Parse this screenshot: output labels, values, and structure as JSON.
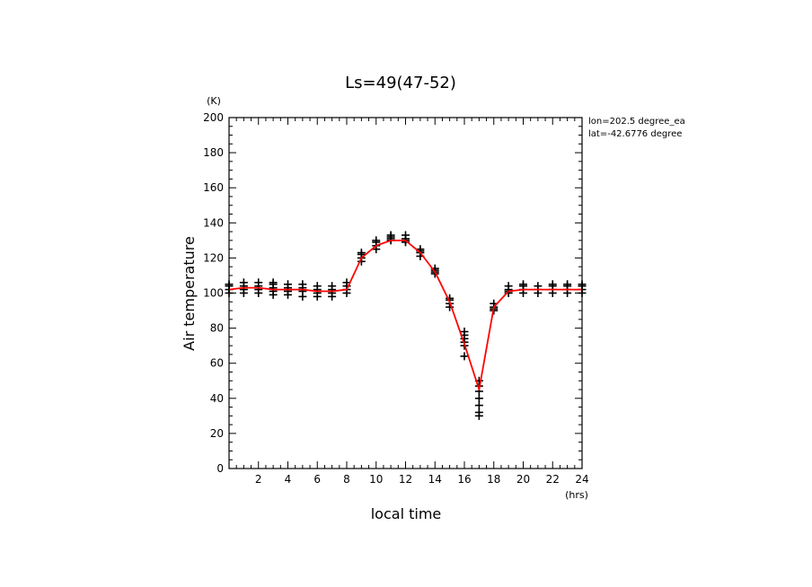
{
  "chart_data": {
    "type": "line",
    "title": "Ls=49(47-52)",
    "xlabel": "local time",
    "ylabel": "Air temperature",
    "x_unit": "(hrs)",
    "y_unit": "(K)",
    "xlim": [
      0,
      24
    ],
    "ylim": [
      0,
      200
    ],
    "x_ticks": [
      2,
      4,
      6,
      8,
      10,
      12,
      14,
      16,
      18,
      20,
      22,
      24
    ],
    "y_ticks": [
      0,
      20,
      40,
      60,
      80,
      100,
      120,
      140,
      160,
      180,
      200
    ],
    "annotations": [
      "lon=202.5 degree_ea",
      "lat=-42.6776 degree"
    ],
    "colors": {
      "line": "#ff0000",
      "markers": "#000000"
    },
    "series": [
      {
        "type": "line",
        "x": [
          0,
          1,
          2,
          3,
          4,
          5,
          6,
          7,
          8,
          9,
          10,
          11,
          12,
          13,
          14,
          15,
          16,
          17,
          18,
          19,
          20,
          21,
          22,
          23,
          24
        ],
        "values": [
          102,
          103,
          103,
          102,
          102,
          102,
          101,
          101,
          102,
          120,
          127,
          130,
          130,
          123,
          112,
          95,
          71,
          45,
          92,
          101,
          102,
          102,
          102,
          102,
          102
        ]
      },
      {
        "type": "scatter",
        "marker": "+",
        "points": [
          [
            0,
            100
          ],
          [
            0,
            102
          ],
          [
            0,
            104
          ],
          [
            0,
            105
          ],
          [
            1,
            100
          ],
          [
            1,
            102
          ],
          [
            1,
            104
          ],
          [
            1,
            106
          ],
          [
            2,
            100
          ],
          [
            2,
            102
          ],
          [
            2,
            104
          ],
          [
            2,
            106
          ],
          [
            3,
            99
          ],
          [
            3,
            101
          ],
          [
            3,
            103
          ],
          [
            3,
            105
          ],
          [
            3,
            106
          ],
          [
            4,
            99
          ],
          [
            4,
            101
          ],
          [
            4,
            103
          ],
          [
            4,
            105
          ],
          [
            5,
            98
          ],
          [
            5,
            101
          ],
          [
            5,
            103
          ],
          [
            5,
            105
          ],
          [
            6,
            98
          ],
          [
            6,
            100
          ],
          [
            6,
            102
          ],
          [
            6,
            104
          ],
          [
            7,
            98
          ],
          [
            7,
            100
          ],
          [
            7,
            102
          ],
          [
            7,
            104
          ],
          [
            8,
            100
          ],
          [
            8,
            102
          ],
          [
            8,
            104
          ],
          [
            8,
            106
          ],
          [
            9,
            118
          ],
          [
            9,
            120
          ],
          [
            9,
            122
          ],
          [
            9,
            123
          ],
          [
            10,
            125
          ],
          [
            10,
            127
          ],
          [
            10,
            129
          ],
          [
            10,
            130
          ],
          [
            11,
            130
          ],
          [
            11,
            131
          ],
          [
            11,
            132
          ],
          [
            11,
            133
          ],
          [
            12,
            129
          ],
          [
            12,
            130
          ],
          [
            12,
            131
          ],
          [
            12,
            133
          ],
          [
            13,
            121
          ],
          [
            13,
            123
          ],
          [
            13,
            124
          ],
          [
            13,
            125
          ],
          [
            14,
            111
          ],
          [
            14,
            112
          ],
          [
            14,
            113
          ],
          [
            14,
            114
          ],
          [
            15,
            92
          ],
          [
            15,
            94
          ],
          [
            15,
            96
          ],
          [
            15,
            97
          ],
          [
            16,
            64
          ],
          [
            16,
            70
          ],
          [
            16,
            72
          ],
          [
            16,
            74
          ],
          [
            16,
            76
          ],
          [
            16,
            78
          ],
          [
            17,
            30
          ],
          [
            17,
            32
          ],
          [
            17,
            36
          ],
          [
            17,
            40
          ],
          [
            17,
            44
          ],
          [
            17,
            47
          ],
          [
            17,
            50
          ],
          [
            18,
            90
          ],
          [
            18,
            91
          ],
          [
            18,
            92
          ],
          [
            18,
            94
          ],
          [
            19,
            100
          ],
          [
            19,
            101
          ],
          [
            19,
            102
          ],
          [
            19,
            104
          ],
          [
            20,
            100
          ],
          [
            20,
            102
          ],
          [
            20,
            104
          ],
          [
            20,
            105
          ],
          [
            21,
            100
          ],
          [
            21,
            102
          ],
          [
            21,
            104
          ],
          [
            22,
            100
          ],
          [
            22,
            102
          ],
          [
            22,
            104
          ],
          [
            22,
            105
          ],
          [
            23,
            100
          ],
          [
            23,
            102
          ],
          [
            23,
            104
          ],
          [
            23,
            105
          ],
          [
            24,
            100
          ],
          [
            24,
            102
          ],
          [
            24,
            104
          ],
          [
            24,
            105
          ]
        ]
      }
    ]
  }
}
